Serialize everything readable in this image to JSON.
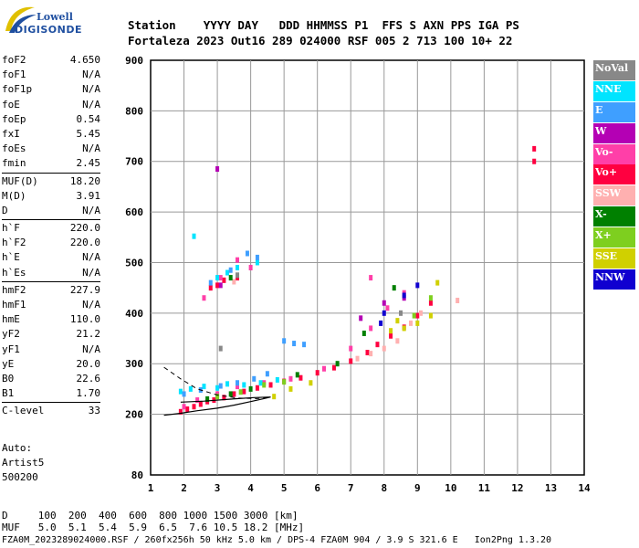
{
  "logo": {
    "top": "Lowell",
    "bottom": "DIGISONDE"
  },
  "header": {
    "line1": "Station    YYYY DAY   DDD HHMMSS P1  FFS S AXN PPS IGA PS",
    "line2": "Fortaleza 2023 Out16 289 024000 RSF 005 2 713 100 10+ 22"
  },
  "params": {
    "group1": [
      {
        "name": "foF2",
        "value": "4.650"
      },
      {
        "name": "foF1",
        "value": "N/A"
      },
      {
        "name": "foF1p",
        "value": "N/A"
      },
      {
        "name": "foE",
        "value": "N/A"
      },
      {
        "name": "foEp",
        "value": "0.54"
      },
      {
        "name": "fxI",
        "value": "5.45"
      },
      {
        "name": "foEs",
        "value": "N/A"
      },
      {
        "name": "fmin",
        "value": "2.45"
      }
    ],
    "group2": [
      {
        "name": "MUF(D)",
        "value": "18.20"
      },
      {
        "name": "M(D)",
        "value": "3.91"
      },
      {
        "name": "D",
        "value": "N/A"
      }
    ],
    "group3": [
      {
        "name": "h`F",
        "value": "220.0"
      },
      {
        "name": "h`F2",
        "value": "220.0"
      },
      {
        "name": "h`E",
        "value": "N/A"
      },
      {
        "name": "h`Es",
        "value": "N/A"
      }
    ],
    "group4": [
      {
        "name": "hmF2",
        "value": "227.9"
      },
      {
        "name": "hmF1",
        "value": "N/A"
      },
      {
        "name": "hmE",
        "value": "110.0"
      },
      {
        "name": "yF2",
        "value": "21.2"
      },
      {
        "name": "yF1",
        "value": "N/A"
      },
      {
        "name": "yE",
        "value": "20.0"
      },
      {
        "name": "B0",
        "value": "22.6"
      },
      {
        "name": "B1",
        "value": "1.70"
      }
    ],
    "group5": [
      {
        "name": "C-level",
        "value": "33"
      }
    ]
  },
  "notes": {
    "auto": "Auto:",
    "artist": "Artist5",
    "code": "500200"
  },
  "legend": [
    {
      "label": "NoVal",
      "color": "#888888"
    },
    {
      "label": "NNE",
      "color": "#00e4ff"
    },
    {
      "label": "E",
      "color": "#3f9fff"
    },
    {
      "label": "W",
      "color": "#b400b4"
    },
    {
      "label": "Vo-",
      "color": "#ff3fa8"
    },
    {
      "label": "Vo+",
      "color": "#ff0040"
    },
    {
      "label": "SSW",
      "color": "#ffb0b0"
    },
    {
      "label": "X-",
      "color": "#008000"
    },
    {
      "label": "X+",
      "color": "#7ecf1f"
    },
    {
      "label": "SSE",
      "color": "#d0d000"
    },
    {
      "label": "NNW",
      "color": "#1000d0"
    }
  ],
  "bottom": {
    "d_row": "D     100  200  400  600  800 1000 1500 3000 [km]",
    "muf_row": "MUF   5.0  5.1  5.4  5.9  6.5  7.6 10.5 18.2 [MHz]",
    "footer": "FZA0M_2023289024000.RSF / 260fx256h 50 kHz 5.0 km / DPS-4 FZA0M 904 / 3.9 S 321.6 E   Ion2Png 1.3.20"
  },
  "chart_data": {
    "type": "scatter",
    "title": "",
    "xlabel": "",
    "ylabel": "",
    "xlim": [
      1,
      14
    ],
    "ylim": [
      80,
      900
    ],
    "xticks": [
      1,
      2,
      3,
      4,
      5,
      6,
      7,
      8,
      9,
      10,
      11,
      12,
      13,
      14
    ],
    "yticks": [
      80,
      200,
      300,
      400,
      500,
      600,
      700,
      800,
      900
    ],
    "grid": true,
    "legend_position": "right",
    "series": [
      {
        "name": "Vo+",
        "color": "#ff0040",
        "points": [
          [
            1.9,
            205
          ],
          [
            2.1,
            210
          ],
          [
            2.3,
            215
          ],
          [
            2.5,
            220
          ],
          [
            2.7,
            225
          ],
          [
            2.9,
            228
          ],
          [
            3.2,
            233
          ],
          [
            3.5,
            240
          ],
          [
            3.8,
            245
          ],
          [
            4.2,
            252
          ],
          [
            4.6,
            258
          ],
          [
            5.0,
            265
          ],
          [
            5.5,
            272
          ],
          [
            6.0,
            282
          ],
          [
            6.5,
            292
          ],
          [
            7.0,
            305
          ],
          [
            7.5,
            322
          ],
          [
            7.8,
            338
          ],
          [
            8.2,
            355
          ],
          [
            8.6,
            372
          ],
          [
            9.0,
            395
          ],
          [
            9.4,
            420
          ],
          [
            3.0,
            455
          ],
          [
            3.2,
            465
          ],
          [
            2.8,
            450
          ],
          [
            3.6,
            470
          ],
          [
            12.5,
            700
          ],
          [
            12.5,
            725
          ]
        ]
      },
      {
        "name": "Vo-",
        "color": "#ff3fa8",
        "points": [
          [
            2.0,
            215
          ],
          [
            2.4,
            228
          ],
          [
            3.0,
            240
          ],
          [
            3.6,
            255
          ],
          [
            4.4,
            262
          ],
          [
            5.2,
            270
          ],
          [
            6.2,
            290
          ],
          [
            7.0,
            330
          ],
          [
            7.6,
            370
          ],
          [
            8.1,
            410
          ],
          [
            8.6,
            440
          ],
          [
            2.6,
            430
          ],
          [
            3.1,
            470
          ],
          [
            3.6,
            505
          ],
          [
            4.0,
            490
          ],
          [
            7.6,
            470
          ]
        ]
      },
      {
        "name": "NNE",
        "color": "#00e4ff",
        "points": [
          [
            1.9,
            245
          ],
          [
            2.2,
            250
          ],
          [
            2.6,
            255
          ],
          [
            3.0,
            252
          ],
          [
            3.3,
            260
          ],
          [
            3.8,
            258
          ],
          [
            4.3,
            262
          ],
          [
            4.8,
            268
          ],
          [
            3.0,
            470
          ],
          [
            3.3,
            480
          ],
          [
            3.6,
            490
          ],
          [
            4.2,
            500
          ],
          [
            2.3,
            552
          ]
        ]
      },
      {
        "name": "E",
        "color": "#3f9fff",
        "points": [
          [
            2.0,
            240
          ],
          [
            2.5,
            248
          ],
          [
            3.1,
            256
          ],
          [
            3.6,
            262
          ],
          [
            4.1,
            270
          ],
          [
            4.5,
            280
          ],
          [
            5.0,
            345
          ],
          [
            5.3,
            340
          ],
          [
            5.6,
            338
          ],
          [
            2.8,
            460
          ],
          [
            3.4,
            485
          ],
          [
            3.9,
            518
          ],
          [
            4.2,
            510
          ]
        ]
      },
      {
        "name": "W",
        "color": "#b400b4",
        "points": [
          [
            3.0,
            685
          ],
          [
            3.1,
            455
          ],
          [
            7.3,
            390
          ],
          [
            8.0,
            420
          ],
          [
            8.6,
            430
          ]
        ]
      },
      {
        "name": "SSW",
        "color": "#ffb0b0",
        "points": [
          [
            7.2,
            310
          ],
          [
            7.6,
            320
          ],
          [
            8.0,
            330
          ],
          [
            8.4,
            345
          ],
          [
            8.8,
            380
          ],
          [
            9.1,
            400
          ],
          [
            10.2,
            425
          ],
          [
            3.5,
            462
          ]
        ]
      },
      {
        "name": "X-",
        "color": "#008000",
        "points": [
          [
            2.7,
            230
          ],
          [
            3.4,
            240
          ],
          [
            4.0,
            250
          ],
          [
            5.4,
            278
          ],
          [
            6.6,
            300
          ],
          [
            7.4,
            360
          ],
          [
            8.3,
            450
          ],
          [
            3.4,
            470
          ]
        ]
      },
      {
        "name": "X+",
        "color": "#7ecf1f",
        "points": [
          [
            3.0,
            235
          ],
          [
            3.7,
            244
          ],
          [
            4.4,
            258
          ],
          [
            5.0,
            264
          ],
          [
            8.9,
            395
          ],
          [
            9.4,
            430
          ]
        ]
      },
      {
        "name": "SSE",
        "color": "#d0d000",
        "points": [
          [
            4.7,
            235
          ],
          [
            5.2,
            250
          ],
          [
            5.8,
            262
          ],
          [
            8.2,
            365
          ],
          [
            8.6,
            370
          ],
          [
            9.0,
            380
          ],
          [
            9.4,
            395
          ],
          [
            9.6,
            460
          ],
          [
            8.4,
            385
          ]
        ]
      },
      {
        "name": "NNW",
        "color": "#1000d0",
        "points": [
          [
            8.0,
            400
          ],
          [
            8.6,
            435
          ],
          [
            9.0,
            455
          ],
          [
            7.9,
            380
          ]
        ]
      },
      {
        "name": "NoVal",
        "color": "#888888",
        "points": [
          [
            3.1,
            330
          ],
          [
            8.5,
            400
          ],
          [
            3.6,
            475
          ]
        ]
      }
    ],
    "profile_solid": [
      [
        1.4,
        198
      ],
      [
        1.9,
        202
      ],
      [
        2.4,
        207
      ],
      [
        3.0,
        212
      ],
      [
        3.5,
        218
      ],
      [
        4.0,
        225
      ],
      [
        4.4,
        231
      ],
      [
        4.6,
        234
      ],
      [
        4.1,
        233
      ],
      [
        3.4,
        230
      ],
      [
        2.6,
        226
      ],
      [
        1.9,
        224
      ]
    ],
    "profile_dashed": [
      [
        1.4,
        293
      ],
      [
        1.9,
        270
      ],
      [
        2.4,
        250
      ],
      [
        3.0,
        238
      ],
      [
        3.6,
        232
      ],
      [
        4.2,
        231
      ],
      [
        4.6,
        234
      ]
    ]
  }
}
